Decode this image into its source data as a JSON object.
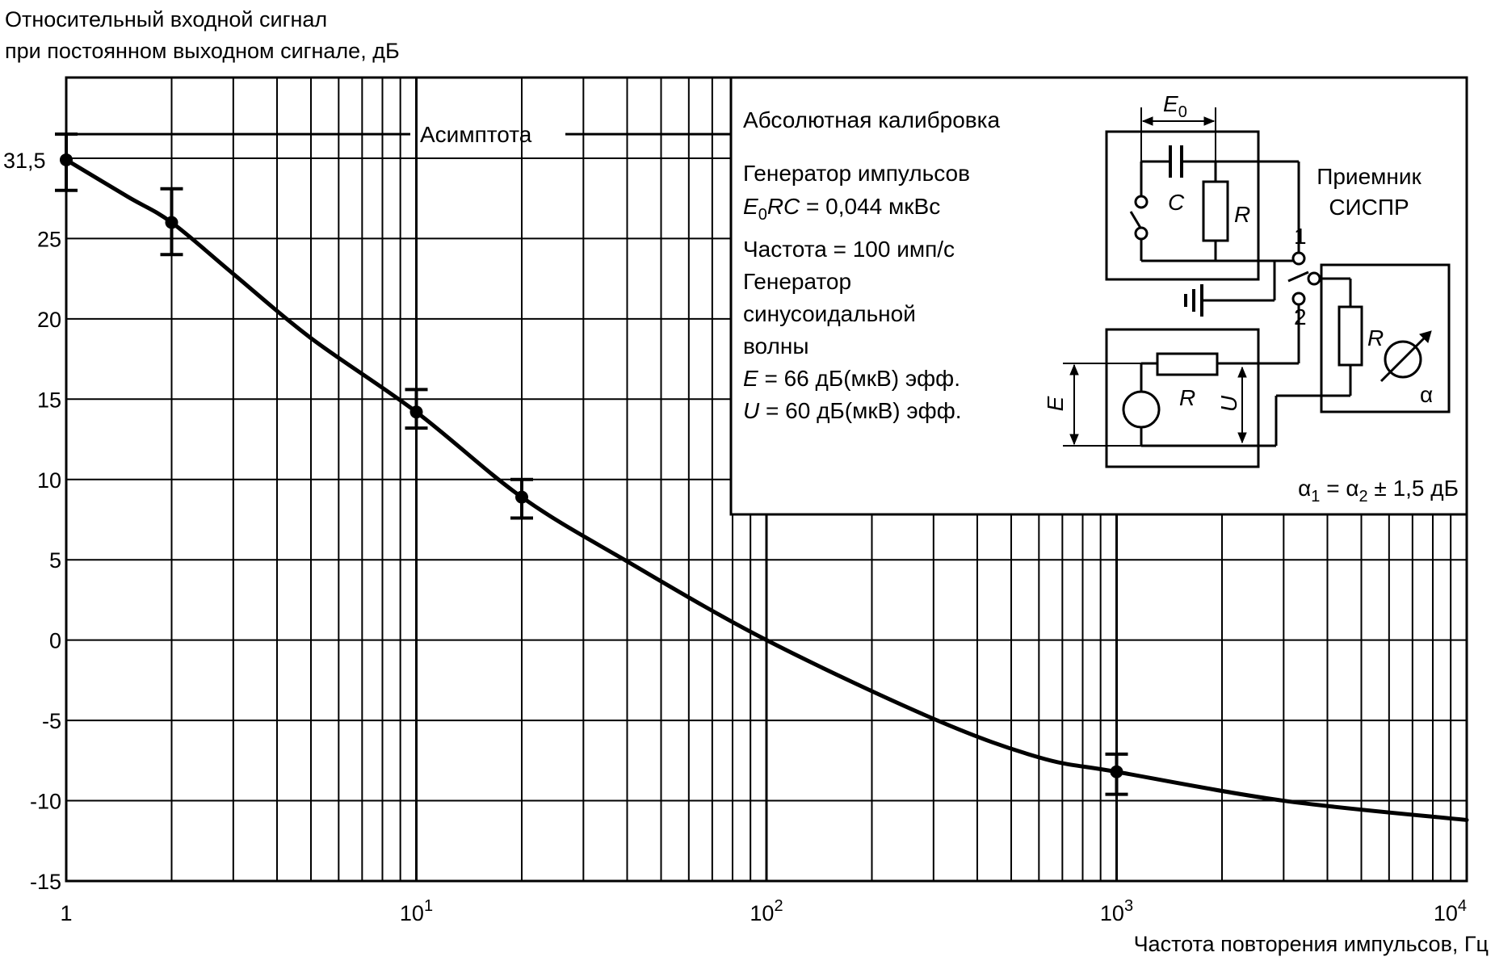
{
  "chart_data": {
    "type": "line",
    "ylabel_line1": "Относительный входной сигнал",
    "ylabel_line2": "при постоянном выходном сигнале, дБ",
    "xlabel": "Частота повторения импульсов, Гц",
    "x_scale": "log",
    "xlim": [
      1,
      10000
    ],
    "ylim": [
      -15,
      33.5
    ],
    "grid": true,
    "x_ticks": [
      {
        "value": 1,
        "base": "1",
        "exp": ""
      },
      {
        "value": 10,
        "base": "10",
        "exp": "1"
      },
      {
        "value": 100,
        "base": "10",
        "exp": "2"
      },
      {
        "value": 1000,
        "base": "10",
        "exp": "3"
      },
      {
        "value": 10000,
        "base": "10",
        "exp": "4"
      }
    ],
    "y_ticks": [
      {
        "value": 25,
        "label": "25"
      },
      {
        "value": 20,
        "label": "20"
      },
      {
        "value": 15,
        "label": "15"
      },
      {
        "value": 10,
        "label": "10"
      },
      {
        "value": 5,
        "label": "5"
      },
      {
        "value": 0,
        "label": "0"
      },
      {
        "value": -5,
        "label": "-5"
      },
      {
        "value": -10,
        "label": "-10"
      },
      {
        "value": -15,
        "label": "-15"
      }
    ],
    "asymptote": {
      "value": 31.5,
      "label": "Асимптота",
      "value_label": "31,5"
    },
    "curve": [
      {
        "x": 1,
        "y": 29.9
      },
      {
        "x": 1.5,
        "y": 27.6
      },
      {
        "x": 2,
        "y": 26.0
      },
      {
        "x": 3,
        "y": 22.8
      },
      {
        "x": 5,
        "y": 18.8
      },
      {
        "x": 10,
        "y": 14.2
      },
      {
        "x": 20,
        "y": 8.9
      },
      {
        "x": 40,
        "y": 4.9
      },
      {
        "x": 100,
        "y": 0.0
      },
      {
        "x": 300,
        "y": -4.9
      },
      {
        "x": 600,
        "y": -7.3
      },
      {
        "x": 1000,
        "y": -8.2
      },
      {
        "x": 3000,
        "y": -10.0
      },
      {
        "x": 10000,
        "y": -11.2
      }
    ],
    "error_points": [
      {
        "x": 1,
        "y": 29.9,
        "low": 28.0,
        "high": 31.5
      },
      {
        "x": 2,
        "y": 26.0,
        "low": 24.0,
        "high": 28.1
      },
      {
        "x": 10,
        "y": 14.2,
        "low": 13.2,
        "high": 15.6
      },
      {
        "x": 20,
        "y": 8.9,
        "low": 7.6,
        "high": 10.0
      },
      {
        "x": 1000,
        "y": -8.2,
        "low": -9.6,
        "high": -7.1
      }
    ]
  },
  "inset": {
    "title": "Абсолютная калибровка",
    "pulse_gen": "Генератор импульсов",
    "e0rc_var_E": "E",
    "e0rc_sub": "0",
    "e0rc_var_RC": "RC",
    "e0rc_value": " = 0,044 мкВс",
    "frequency": "Частота = 100 имп/с",
    "sine_gen_1": "Генератор",
    "sine_gen_2": "синусоидальной",
    "sine_gen_3": "волны",
    "e_var": "E",
    "e_value": " = 66 дБ(мкВ) эфф.",
    "u_var": "U",
    "u_value": " = 60 дБ(мкВ) эфф.",
    "receiver_1": "Приемник",
    "receiver_2": "СИСПР",
    "circuit_E": "E",
    "circuit_E0": "E",
    "circuit_E0_sub": "0",
    "circuit_C": "C",
    "circuit_R_top": "R",
    "circuit_R_mid": "R",
    "circuit_R_recv": "R",
    "circuit_U": "U",
    "switch_1": "1",
    "switch_2": "2",
    "alpha": "α",
    "formula_a": "α",
    "formula_sub1": "1",
    "formula_mid": " = α",
    "formula_sub2": "2",
    "formula_tail": " ± 1,5 дБ"
  }
}
